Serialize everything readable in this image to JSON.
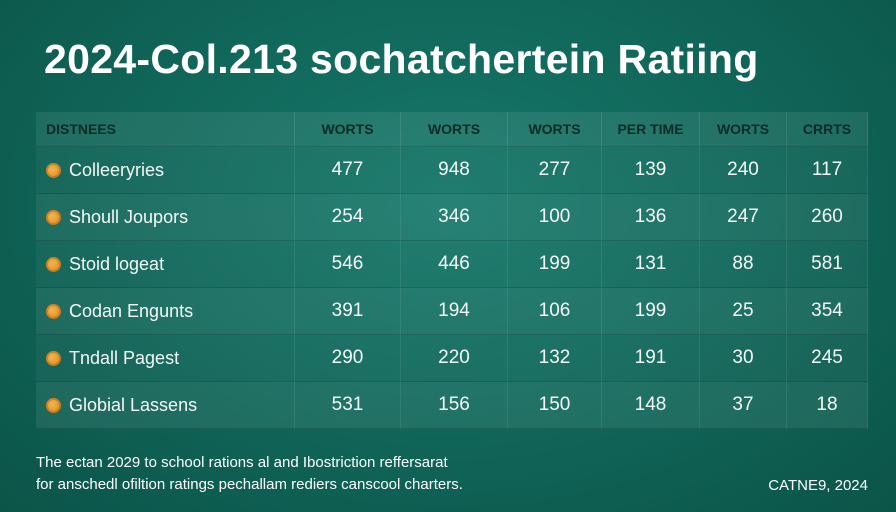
{
  "chart_data": {
    "type": "table",
    "title": "2024-Col.213 sochatchertein Ratiing",
    "columns": [
      "DISTNEES",
      "WORTS",
      "WORTS",
      "WORTS",
      "PER TIME",
      "WORTS",
      "CRRTS"
    ],
    "rows": [
      {
        "icon": "coin-icon",
        "name": "Colleeryries",
        "values": [
          "477",
          "948",
          "277",
          "139",
          "240",
          "117"
        ]
      },
      {
        "icon": "coin-icon",
        "name": "Shoull Joupors",
        "values": [
          "254",
          "346",
          "100",
          "136",
          "247",
          "260"
        ]
      },
      {
        "icon": "coin-icon",
        "name": "Stoid logeat",
        "values": [
          "546",
          "446",
          "199",
          "131",
          "88",
          "581"
        ]
      },
      {
        "icon": "coin-icon",
        "name": "Codan Engunts",
        "values": [
          "391",
          "194",
          "106",
          "199",
          "25",
          "354"
        ]
      },
      {
        "icon": "coin-icon",
        "name": "Tndall Pagest",
        "values": [
          "290",
          "220",
          "132",
          "191",
          "30",
          "245"
        ]
      },
      {
        "icon": "coin-icon",
        "name": "Globial Lassens",
        "values": [
          "531",
          "156",
          "150",
          "148",
          "37",
          "18"
        ]
      }
    ]
  },
  "footnote": {
    "line1": "The ectan 2029 to school rations al and Ibostriction reffersarat",
    "line2": "for anschedl ofiltion ratings pechallam rediers canscool charters."
  },
  "credit": "CATNE9, 2024",
  "colors": {
    "background": "#0f6356",
    "header_text": "#0c2b26",
    "icon": "#e0922a"
  }
}
